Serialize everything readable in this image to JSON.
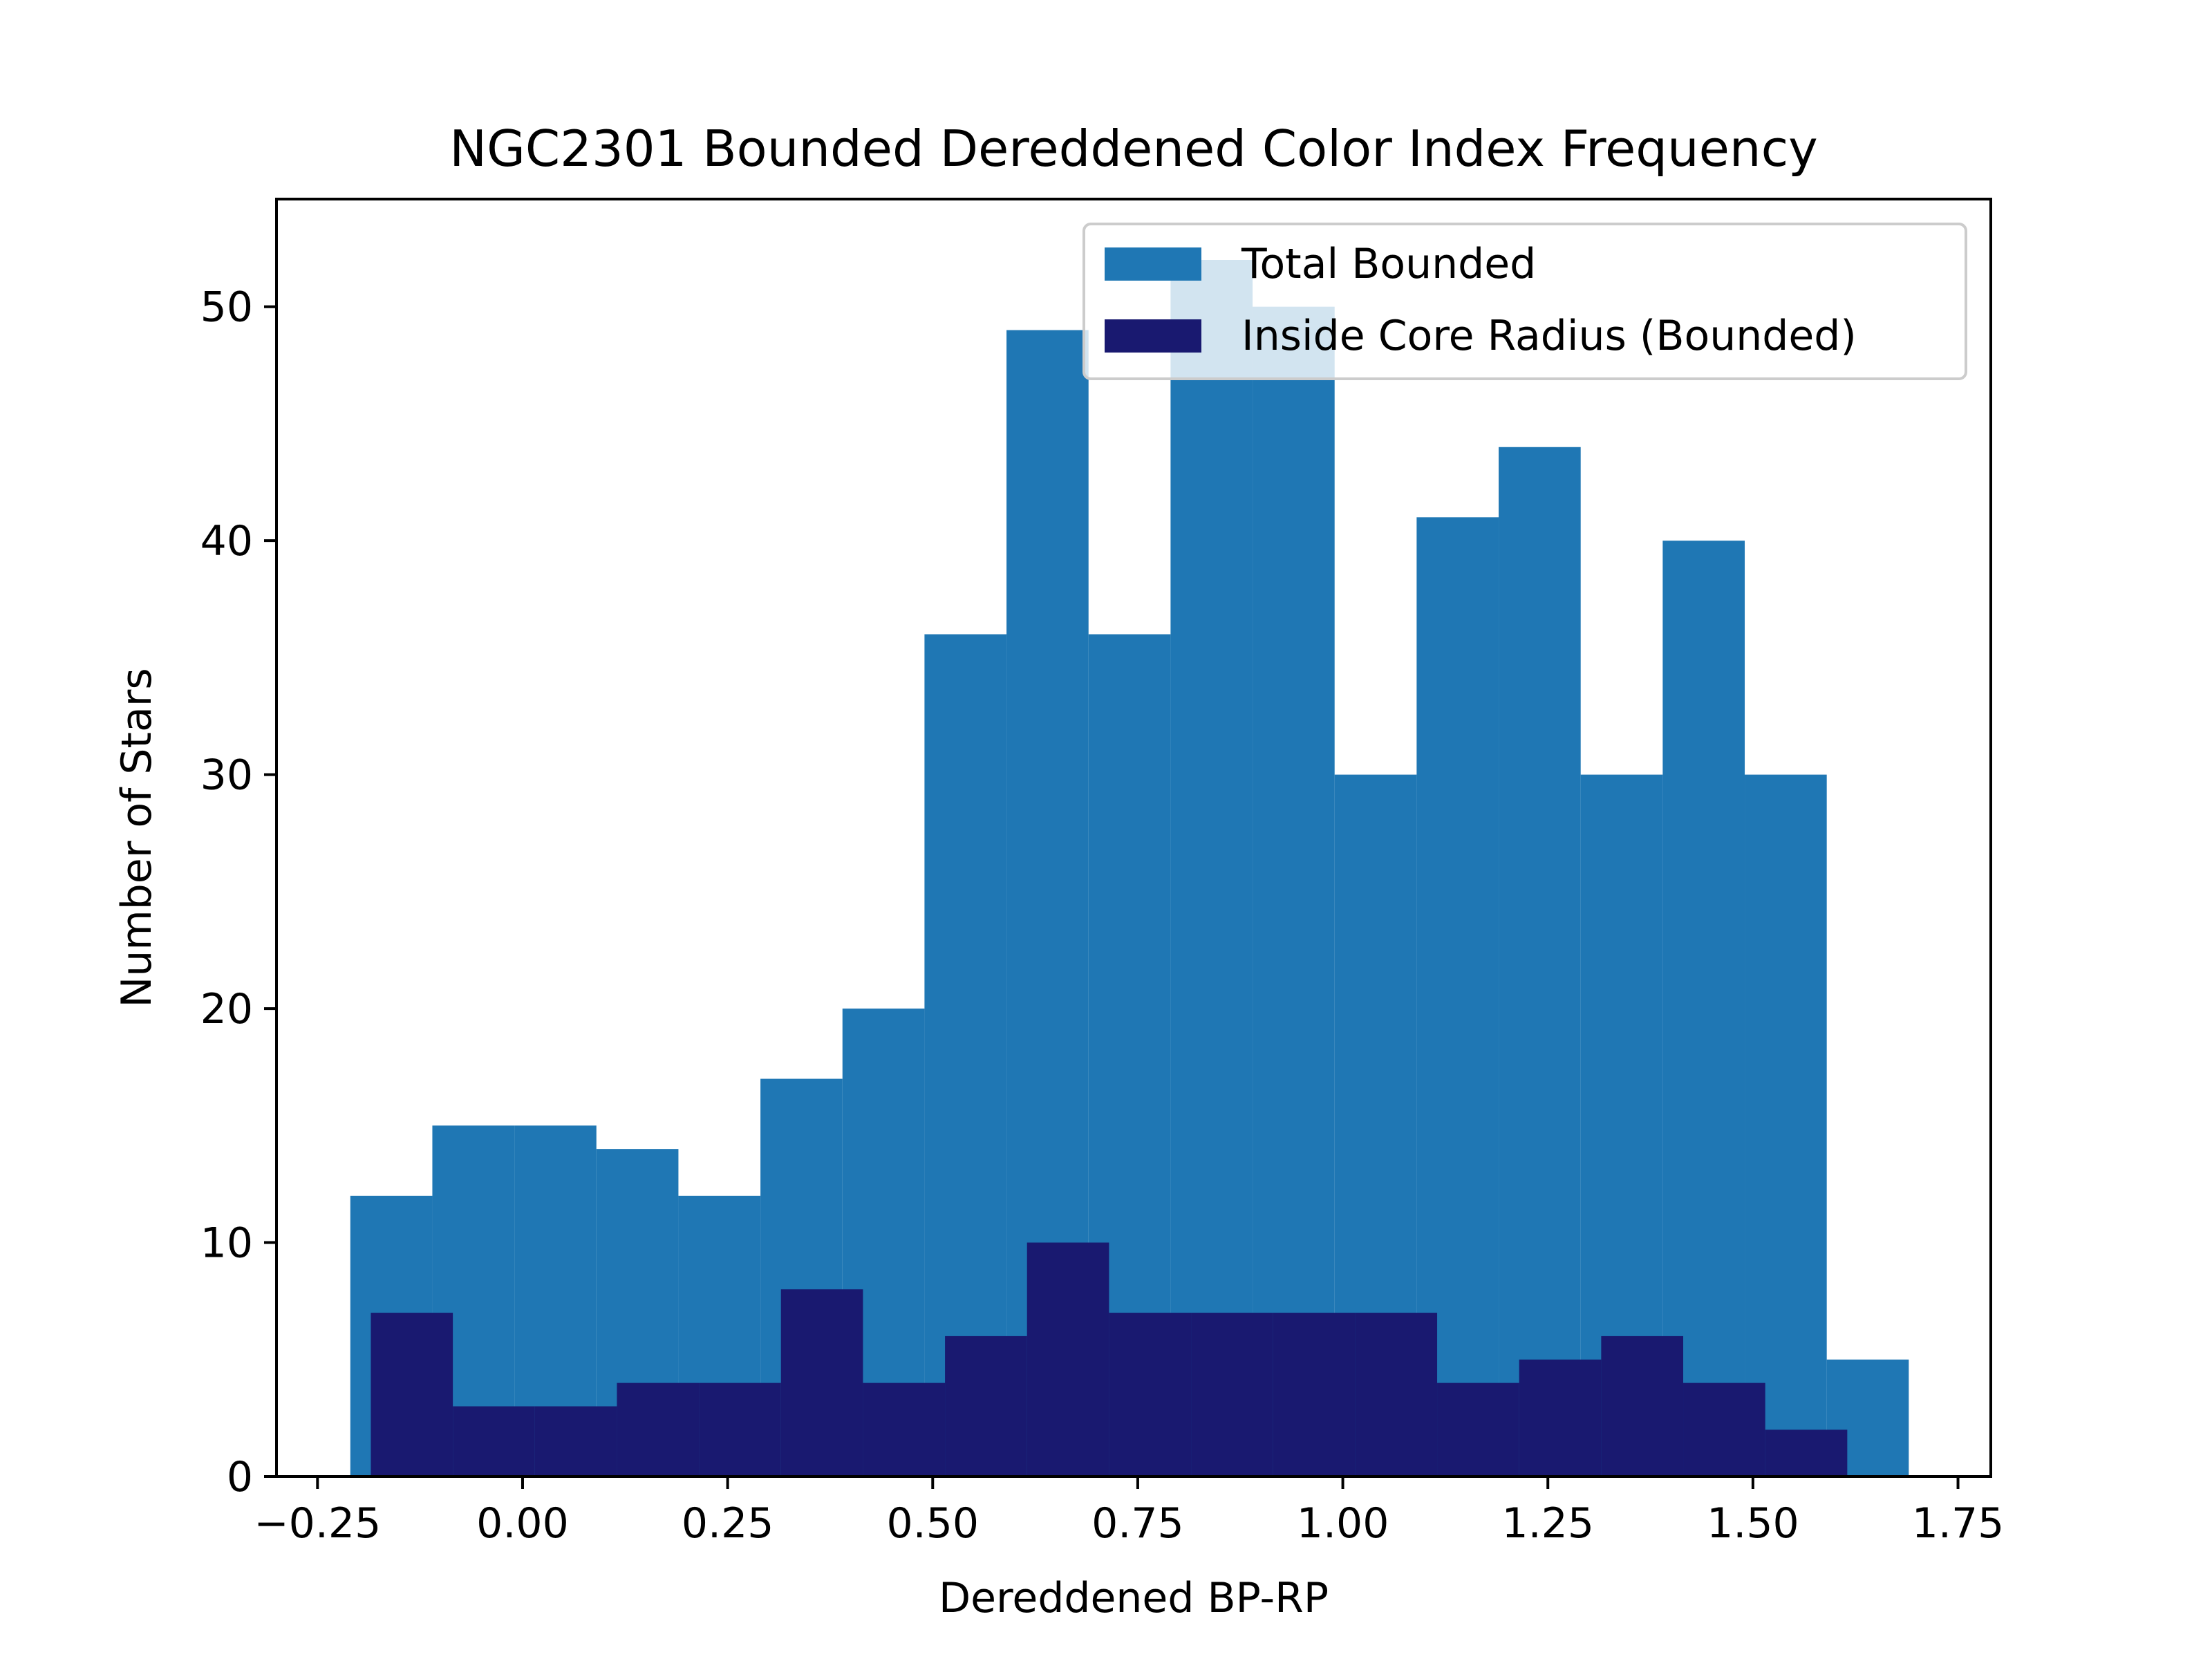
{
  "chart_data": {
    "type": "bar",
    "title": "NGC2301 Bounded Dereddened Color Index Frequency",
    "xlabel": "Dereddened BP-RP",
    "ylabel": "Number of Stars",
    "xlim": [
      -0.3,
      1.79
    ],
    "ylim": [
      0,
      54.6
    ],
    "xticks": [
      -0.25,
      0.0,
      0.25,
      0.5,
      0.75,
      1.0,
      1.25,
      1.5,
      1.75
    ],
    "xtick_labels": [
      "−0.25",
      "0.00",
      "0.25",
      "0.50",
      "0.75",
      "1.00",
      "1.25",
      "1.50",
      "1.75"
    ],
    "yticks": [
      0,
      10,
      20,
      30,
      40,
      50
    ],
    "ytick_labels": [
      "0",
      "10",
      "20",
      "30",
      "40",
      "50"
    ],
    "grid": false,
    "legend_position": "top-right",
    "series": [
      {
        "name": "Total Bounded",
        "color": "#1f77b4",
        "bin_edges": [
          -0.21,
          -0.11,
          -0.01,
          0.09,
          0.19,
          0.29,
          0.39,
          0.49,
          0.59,
          0.69,
          0.79,
          0.89,
          0.99,
          1.09,
          1.19,
          1.29,
          1.39,
          1.49,
          1.59,
          1.69
        ],
        "values": [
          12,
          15,
          15,
          14,
          12,
          17,
          20,
          36,
          49,
          36,
          52,
          50,
          30,
          41,
          44,
          30,
          40,
          30,
          5
        ]
      },
      {
        "name": "Inside Core Radius (Bounded)",
        "color": "#191970",
        "bin_edges": [
          -0.185,
          -0.085,
          0.015,
          0.115,
          0.215,
          0.315,
          0.415,
          0.515,
          0.615,
          0.715,
          0.815,
          0.915,
          1.015,
          1.115,
          1.215,
          1.315,
          1.415,
          1.515,
          1.615
        ],
        "values": [
          7,
          3,
          3,
          4,
          4,
          8,
          4,
          6,
          10,
          7,
          7,
          7,
          7,
          4,
          5,
          6,
          4,
          2
        ]
      }
    ]
  }
}
